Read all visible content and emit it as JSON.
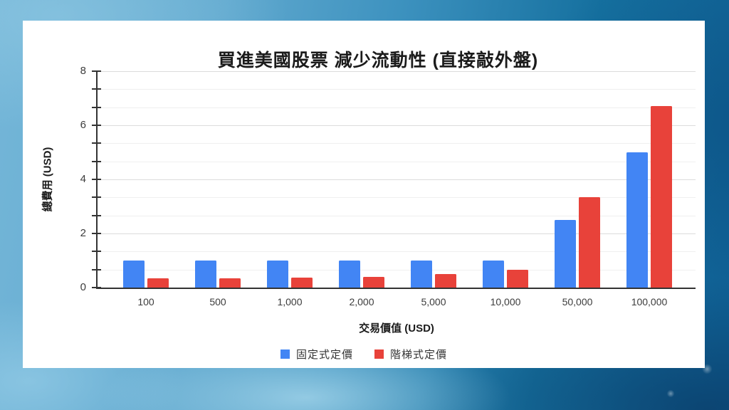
{
  "background": {
    "water_light_blue": "#74b6d8",
    "water_deep_blue": "#0f6095",
    "card_color": "#ffffff"
  },
  "chart_data": {
    "type": "bar",
    "title": "買進美國股票 減少流動性 (直接敲外盤)",
    "xlabel": "交易價值 (USD)",
    "ylabel": "總費用 (USD)",
    "categories": [
      "100",
      "500",
      "1,000",
      "2,000",
      "5,000",
      "10,000",
      "50,000",
      "100,000"
    ],
    "series": [
      {
        "name": "固定式定價",
        "color": "#4285f4",
        "values": [
          1.0,
          1.0,
          1.0,
          1.0,
          1.0,
          1.0,
          2.5,
          5.0
        ]
      },
      {
        "name": "階梯式定價",
        "color": "#e8423a",
        "values": [
          0.35,
          0.35,
          0.37,
          0.4,
          0.5,
          0.65,
          3.33,
          6.7
        ]
      }
    ],
    "ylim": [
      0,
      8
    ],
    "y_major_ticks": [
      0,
      2,
      4,
      6,
      8
    ],
    "y_minor_step": 0.6667,
    "grid": true,
    "legend_position": "bottom",
    "axis_color": "#333333",
    "grid_major_color": "#dcdcdc",
    "grid_minor_color": "#efefef"
  }
}
